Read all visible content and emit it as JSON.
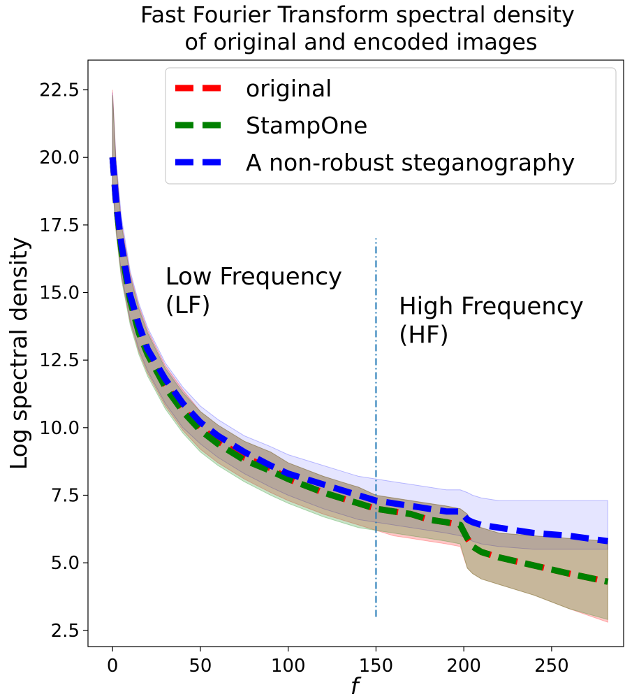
{
  "chart_data": {
    "type": "line",
    "title": "Fast Fourier Transform spectral density",
    "subtitle": "of original and encoded images",
    "xlabel": "f",
    "ylabel": "Log spectral density",
    "xlim": [
      -14,
      291
    ],
    "ylim": [
      1.9,
      23.6
    ],
    "x_ticks": [
      0,
      50,
      100,
      150,
      200,
      250
    ],
    "x_tick_labels": [
      "0",
      "50",
      "100",
      "150",
      "200",
      "250"
    ],
    "y_ticks": [
      2.5,
      5.0,
      7.5,
      10.0,
      12.5,
      15.0,
      17.5,
      20.0,
      22.5
    ],
    "y_tick_labels": [
      "2.5",
      "5.0",
      "7.5",
      "10.0",
      "12.5",
      "15.0",
      "17.5",
      "20.0",
      "22.5"
    ],
    "grid": false,
    "legend_position": "top-right",
    "colors": {
      "original": "#ff0000",
      "stampone": "#008000",
      "nonrobust": "#0000ff",
      "divider": "#1f77b4"
    },
    "series": [
      {
        "name": "original",
        "x": [
          0,
          2,
          5,
          10,
          15,
          20,
          30,
          40,
          50,
          60,
          75,
          90,
          100,
          120,
          130,
          140,
          150,
          160,
          170,
          180,
          190,
          198,
          202,
          205,
          210,
          220,
          240,
          260,
          282
        ],
        "y": [
          20.0,
          18.3,
          16.6,
          14.8,
          13.6,
          12.8,
          11.6,
          10.7,
          10.0,
          9.5,
          8.9,
          8.5,
          8.1,
          7.6,
          7.4,
          7.2,
          7.0,
          6.9,
          6.8,
          6.6,
          6.5,
          6.4,
          5.9,
          5.6,
          5.4,
          5.2,
          4.9,
          4.6,
          4.3
        ],
        "band_upper": [
          22.5,
          19.8,
          17.6,
          15.7,
          14.5,
          13.6,
          12.3,
          11.4,
          10.6,
          10.1,
          9.5,
          9.1,
          8.7,
          8.2,
          8.0,
          7.8,
          7.5,
          7.4,
          7.3,
          7.2,
          7.1,
          7.0,
          6.8,
          6.5,
          6.3,
          6.1,
          6.0,
          5.9,
          5.8
        ],
        "band_lower": [
          19.0,
          17.3,
          15.6,
          13.9,
          12.8,
          12.0,
          10.8,
          9.9,
          9.2,
          8.7,
          8.1,
          7.6,
          7.3,
          6.8,
          6.6,
          6.4,
          6.2,
          6.0,
          5.9,
          5.8,
          5.7,
          5.6,
          4.8,
          4.6,
          4.4,
          4.2,
          3.8,
          3.3,
          2.8
        ]
      },
      {
        "name": "StampOne",
        "x": [
          0,
          2,
          5,
          10,
          15,
          20,
          30,
          40,
          50,
          60,
          75,
          90,
          100,
          120,
          130,
          140,
          150,
          160,
          170,
          180,
          190,
          198,
          202,
          205,
          210,
          220,
          240,
          260,
          282
        ],
        "y": [
          20.0,
          18.3,
          16.6,
          14.7,
          13.5,
          12.7,
          11.5,
          10.6,
          9.9,
          9.4,
          8.8,
          8.4,
          8.1,
          7.6,
          7.4,
          7.2,
          7.0,
          6.9,
          6.8,
          6.6,
          6.5,
          6.4,
          5.9,
          5.6,
          5.4,
          5.2,
          4.9,
          4.6,
          4.3
        ],
        "band_upper": [
          22.3,
          19.7,
          17.5,
          15.6,
          14.4,
          13.5,
          12.2,
          11.3,
          10.6,
          10.1,
          9.5,
          9.1,
          8.7,
          8.2,
          8.0,
          7.8,
          7.5,
          7.4,
          7.3,
          7.2,
          7.1,
          7.0,
          6.8,
          6.5,
          6.3,
          6.1,
          6.0,
          5.9,
          5.8
        ],
        "band_lower": [
          19.0,
          17.2,
          15.5,
          13.8,
          12.7,
          11.9,
          10.7,
          9.8,
          9.1,
          8.6,
          8.0,
          7.5,
          7.2,
          6.7,
          6.5,
          6.3,
          6.2,
          6.1,
          6.0,
          5.9,
          5.8,
          5.7,
          4.8,
          4.6,
          4.4,
          4.2,
          3.8,
          3.3,
          2.9
        ]
      },
      {
        "name": "A non-robust steganography",
        "x": [
          0,
          2,
          5,
          10,
          15,
          20,
          30,
          40,
          50,
          60,
          75,
          90,
          100,
          120,
          130,
          140,
          150,
          160,
          170,
          180,
          190,
          198,
          202,
          205,
          210,
          220,
          240,
          260,
          282
        ],
        "y": [
          20.0,
          18.4,
          16.8,
          14.9,
          13.8,
          12.9,
          11.8,
          10.9,
          10.2,
          9.7,
          9.1,
          8.6,
          8.3,
          7.9,
          7.7,
          7.5,
          7.3,
          7.2,
          7.1,
          7.0,
          6.9,
          6.9,
          6.6,
          6.5,
          6.4,
          6.3,
          6.1,
          6.0,
          5.8
        ],
        "band_upper": [
          22.4,
          19.9,
          17.8,
          15.8,
          14.6,
          13.7,
          12.4,
          11.5,
          10.8,
          10.3,
          9.7,
          9.3,
          9.0,
          8.6,
          8.4,
          8.2,
          8.1,
          8.0,
          7.9,
          7.8,
          7.7,
          7.7,
          7.6,
          7.5,
          7.4,
          7.3,
          7.3,
          7.3,
          7.3
        ],
        "band_lower": [
          19.1,
          17.4,
          15.7,
          14.0,
          12.9,
          12.1,
          10.9,
          10.0,
          9.4,
          8.9,
          8.3,
          7.8,
          7.5,
          7.0,
          6.8,
          6.6,
          6.5,
          6.4,
          6.3,
          6.2,
          6.1,
          6.0,
          5.9,
          5.8,
          5.7,
          5.6,
          5.5,
          5.5,
          5.5
        ]
      }
    ],
    "annotations": [
      {
        "name": "low-frequency",
        "lines": [
          "Low Frequency",
          "(LF)"
        ],
        "x": 30,
        "y": 15.3
      },
      {
        "name": "high-frequency",
        "lines": [
          "High Frequency",
          "(HF)"
        ],
        "x": 163,
        "y": 14.2
      }
    ],
    "divider": {
      "x": 150,
      "y_from": 3.0,
      "y_to": 17.0
    }
  }
}
